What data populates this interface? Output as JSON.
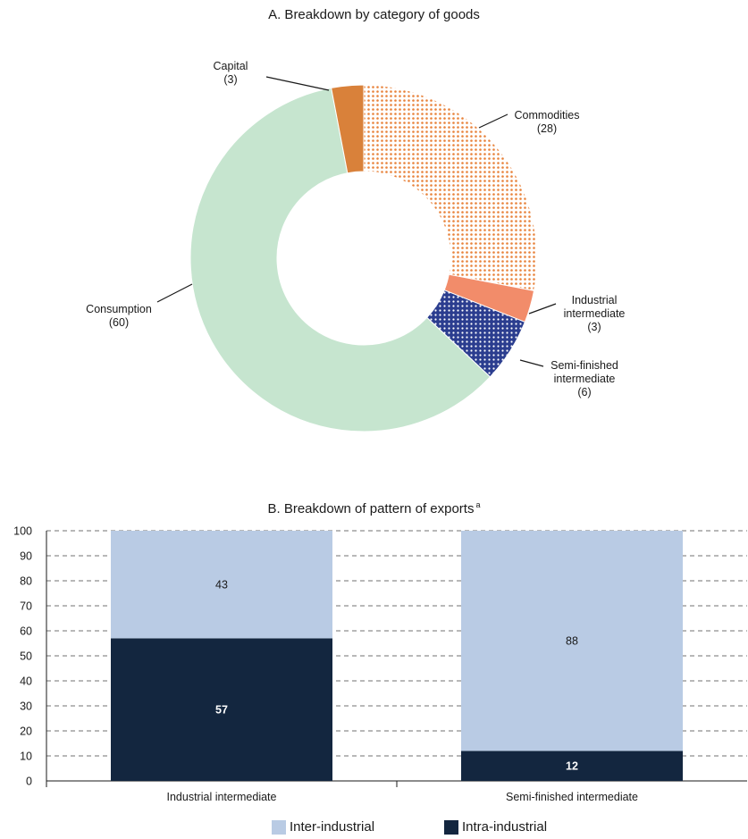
{
  "chart_data": [
    {
      "type": "pie",
      "title": "A. Breakdown by category of goods",
      "slices": [
        {
          "name": "Commodities",
          "value": 28,
          "value_label": "(28)",
          "color": "#e8823a",
          "pattern": "dots-orange"
        },
        {
          "name": "Industrial intermediate",
          "name_lines": [
            "Industrial",
            "intermediate"
          ],
          "value": 3,
          "value_label": "(3)",
          "color": "#f28c6a",
          "pattern": "solid"
        },
        {
          "name": "Semi-finished intermediate",
          "name_lines": [
            "Semi-finished",
            "intermediate"
          ],
          "value": 6,
          "value_label": "(6)",
          "color": "#2b3d8f",
          "pattern": "dots-blue"
        },
        {
          "name": "Consumption",
          "value": 60,
          "value_label": "(60)",
          "color": "#c6e5cf",
          "pattern": "solid"
        },
        {
          "name": "Capital",
          "value": 3,
          "value_label": "(3)",
          "color": "#d9813a",
          "pattern": "solid"
        }
      ]
    },
    {
      "type": "bar",
      "stacked": true,
      "title": "B. Breakdown of pattern of exports",
      "title_superscript": "a",
      "categories": [
        "Industrial intermediate",
        "Semi-finished intermediate"
      ],
      "series": [
        {
          "name": "Intra-industrial",
          "values": [
            57,
            12
          ],
          "color": "#13263f",
          "label_color": "#ffffff"
        },
        {
          "name": "Inter-industrial",
          "values": [
            43,
            88
          ],
          "color": "#b9cbe4",
          "label_color": "#1a1a1a"
        }
      ],
      "ylim": [
        0,
        100
      ],
      "yticks": [
        0,
        10,
        20,
        30,
        40,
        50,
        60,
        70,
        80,
        90,
        100
      ],
      "grid": true,
      "legend_position": "bottom",
      "legend_order": [
        "Inter-industrial",
        "Intra-industrial"
      ]
    }
  ]
}
